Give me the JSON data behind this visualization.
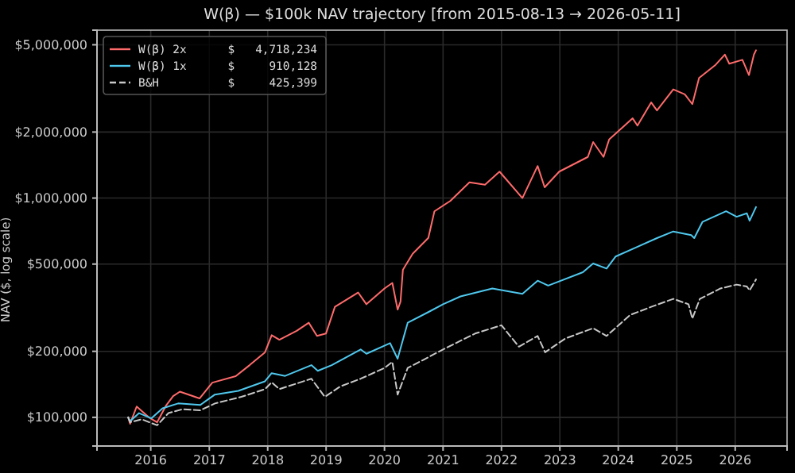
{
  "chart_data": {
    "type": "line",
    "title": "W(β) — $100k NAV trajectory  [from 2015-08-13 → 2026-05-11]",
    "ylabel": "NAV ($, log scale)",
    "log": "y",
    "grid": true,
    "legend": "top left",
    "marker": "none",
    "xlim": [
      "2015-01-30",
      "2026-11-21"
    ],
    "xticks": [
      {
        "value": "2016",
        "label": "2016"
      },
      {
        "value": "2017",
        "label": "2017"
      },
      {
        "value": "2018",
        "label": "2018"
      },
      {
        "value": "2019",
        "label": "2019"
      },
      {
        "value": "2020",
        "label": "2020"
      },
      {
        "value": "2021",
        "label": "2021"
      },
      {
        "value": "2022",
        "label": "2022"
      },
      {
        "value": "2023",
        "label": "2023"
      },
      {
        "value": "2024",
        "label": "2024"
      },
      {
        "value": "2025",
        "label": "2025"
      },
      {
        "value": "2026",
        "label": "2026"
      }
    ],
    "ylim": [
      74000,
      5830000
    ],
    "yticks": [
      {
        "value": 100000,
        "label": "$100,000"
      },
      {
        "value": 200000,
        "label": "$200,000"
      },
      {
        "value": 500000,
        "label": "$500,000"
      },
      {
        "value": 1000000,
        "label": "$1,000,000"
      },
      {
        "value": 2000000,
        "label": "$2,000,000"
      },
      {
        "value": 5000000,
        "label": "$5,000,000"
      }
    ],
    "series": [
      {
        "name": "W(β) 2x      $   4,718,234",
        "color": "#ff6b6b",
        "line_style": "solid",
        "x": [
          "2015-08-13",
          "2015-08-25",
          "2015-10-05",
          "2015-12-20",
          "2016-02-10",
          "2016-04-05",
          "2016-05-20",
          "2016-07-01",
          "2016-11-01",
          "2017-01-20",
          "2017-06-15",
          "2017-09-10",
          "2017-12-15",
          "2018-01-26",
          "2018-03-15",
          "2018-07-01",
          "2018-09-15",
          "2018-11-05",
          "2018-12-31",
          "2019-02-25",
          "2019-07-20",
          "2019-09-10",
          "2020-01-01",
          "2020-02-19",
          "2020-03-23",
          "2020-04-10",
          "2020-04-25",
          "2020-06-25",
          "2020-10-01",
          "2020-11-08",
          "2021-02-15",
          "2021-06-15",
          "2021-09-20",
          "2021-12-20",
          "2022-05-12",
          "2022-08-15",
          "2022-09-28",
          "2022-12-28",
          "2023-06-25",
          "2023-07-28",
          "2023-10-01",
          "2023-11-05",
          "2024-03-31",
          "2024-04-30",
          "2024-07-25",
          "2024-08-30",
          "2024-12-10",
          "2025-02-20",
          "2025-04-08",
          "2025-05-20",
          "2025-08-28",
          "2025-10-28",
          "2025-11-25",
          "2026-02-15",
          "2026-03-28",
          "2026-04-28",
          "2026-05-11"
        ],
        "values": [
          100000,
          93500,
          112000,
          100000,
          95000,
          113000,
          125000,
          131000,
          122000,
          144000,
          154000,
          173000,
          198000,
          237000,
          226000,
          248000,
          270000,
          235000,
          241000,
          319000,
          371000,
          328000,
          387000,
          410000,
          310000,
          337000,
          471000,
          557000,
          658000,
          870000,
          970000,
          1180000,
          1150000,
          1320000,
          1000000,
          1400000,
          1120000,
          1320000,
          1540000,
          1800000,
          1540000,
          1850000,
          2310000,
          2140000,
          2730000,
          2510000,
          3130000,
          2970000,
          2680000,
          3530000,
          4030000,
          4510000,
          4100000,
          4270000,
          3640000,
          4510000,
          4718234
        ]
      },
      {
        "name": "W(β) 1x      $     910,128",
        "color": "#4fc8ee",
        "line_style": "solid",
        "x": [
          "2015-08-13",
          "2015-08-25",
          "2015-10-20",
          "2016-01-05",
          "2016-03-15",
          "2016-06-20",
          "2016-11-05",
          "2017-02-05",
          "2017-07-01",
          "2017-12-15",
          "2018-01-26",
          "2018-04-20",
          "2018-10-01",
          "2018-11-10",
          "2019-02-05",
          "2019-08-05",
          "2019-09-10",
          "2020-02-05",
          "2020-03-23",
          "2020-05-25",
          "2020-10-01",
          "2021-01-01",
          "2021-04-20",
          "2021-11-05",
          "2022-05-12",
          "2022-08-15",
          "2022-10-20",
          "2023-05-25",
          "2023-07-28",
          "2023-10-20",
          "2023-12-15",
          "2024-04-20",
          "2024-08-30",
          "2024-12-10",
          "2025-04-01",
          "2025-04-20",
          "2025-06-10",
          "2025-11-05",
          "2026-01-10",
          "2026-03-15",
          "2026-04-01",
          "2026-05-11"
        ],
        "values": [
          100000,
          96000,
          104500,
          99000,
          110000,
          115700,
          113800,
          127000,
          132000,
          146000,
          159000,
          154500,
          173000,
          163000,
          173000,
          204000,
          195000,
          218000,
          185000,
          270000,
          302000,
          328000,
          356000,
          387000,
          366000,
          420000,
          399000,
          459000,
          503000,
          477000,
          541000,
          595000,
          657000,
          704000,
          678000,
          657000,
          778000,
          871000,
          822000,
          852000,
          788000,
          910128
        ]
      },
      {
        "name": "B&H          $     425,399",
        "color": "#c8c8c8",
        "line_style": "dashed",
        "x": [
          "2015-08-13",
          "2015-08-25",
          "2015-11-05",
          "2016-02-10",
          "2016-04-20",
          "2016-07-20",
          "2016-11-05",
          "2017-02-05",
          "2017-07-20",
          "2017-12-15",
          "2018-01-26",
          "2018-03-15",
          "2018-10-01",
          "2018-12-24",
          "2019-04-01",
          "2019-08-05",
          "2020-01-01",
          "2020-02-19",
          "2020-03-23",
          "2020-05-25",
          "2020-10-01",
          "2021-01-01",
          "2021-07-20",
          "2022-01-01",
          "2022-04-20",
          "2022-08-15",
          "2022-10-01",
          "2023-02-05",
          "2023-07-28",
          "2023-10-20",
          "2024-03-15",
          "2024-07-25",
          "2024-12-10",
          "2025-03-15",
          "2025-04-08",
          "2025-05-25",
          "2025-10-01",
          "2026-01-10",
          "2026-03-15",
          "2026-04-01",
          "2026-05-11"
        ],
        "values": [
          100000,
          95000,
          98000,
          92000,
          104500,
          109000,
          107600,
          115700,
          124000,
          134500,
          144500,
          134500,
          150000,
          124000,
          138500,
          150000,
          168000,
          179000,
          127000,
          168000,
          188000,
          204000,
          241000,
          263000,
          210000,
          235000,
          198000,
          229000,
          255000,
          235000,
          293000,
          319000,
          347000,
          328000,
          282000,
          347000,
          387000,
          403000,
          395000,
          379000,
          425399
        ]
      }
    ]
  }
}
